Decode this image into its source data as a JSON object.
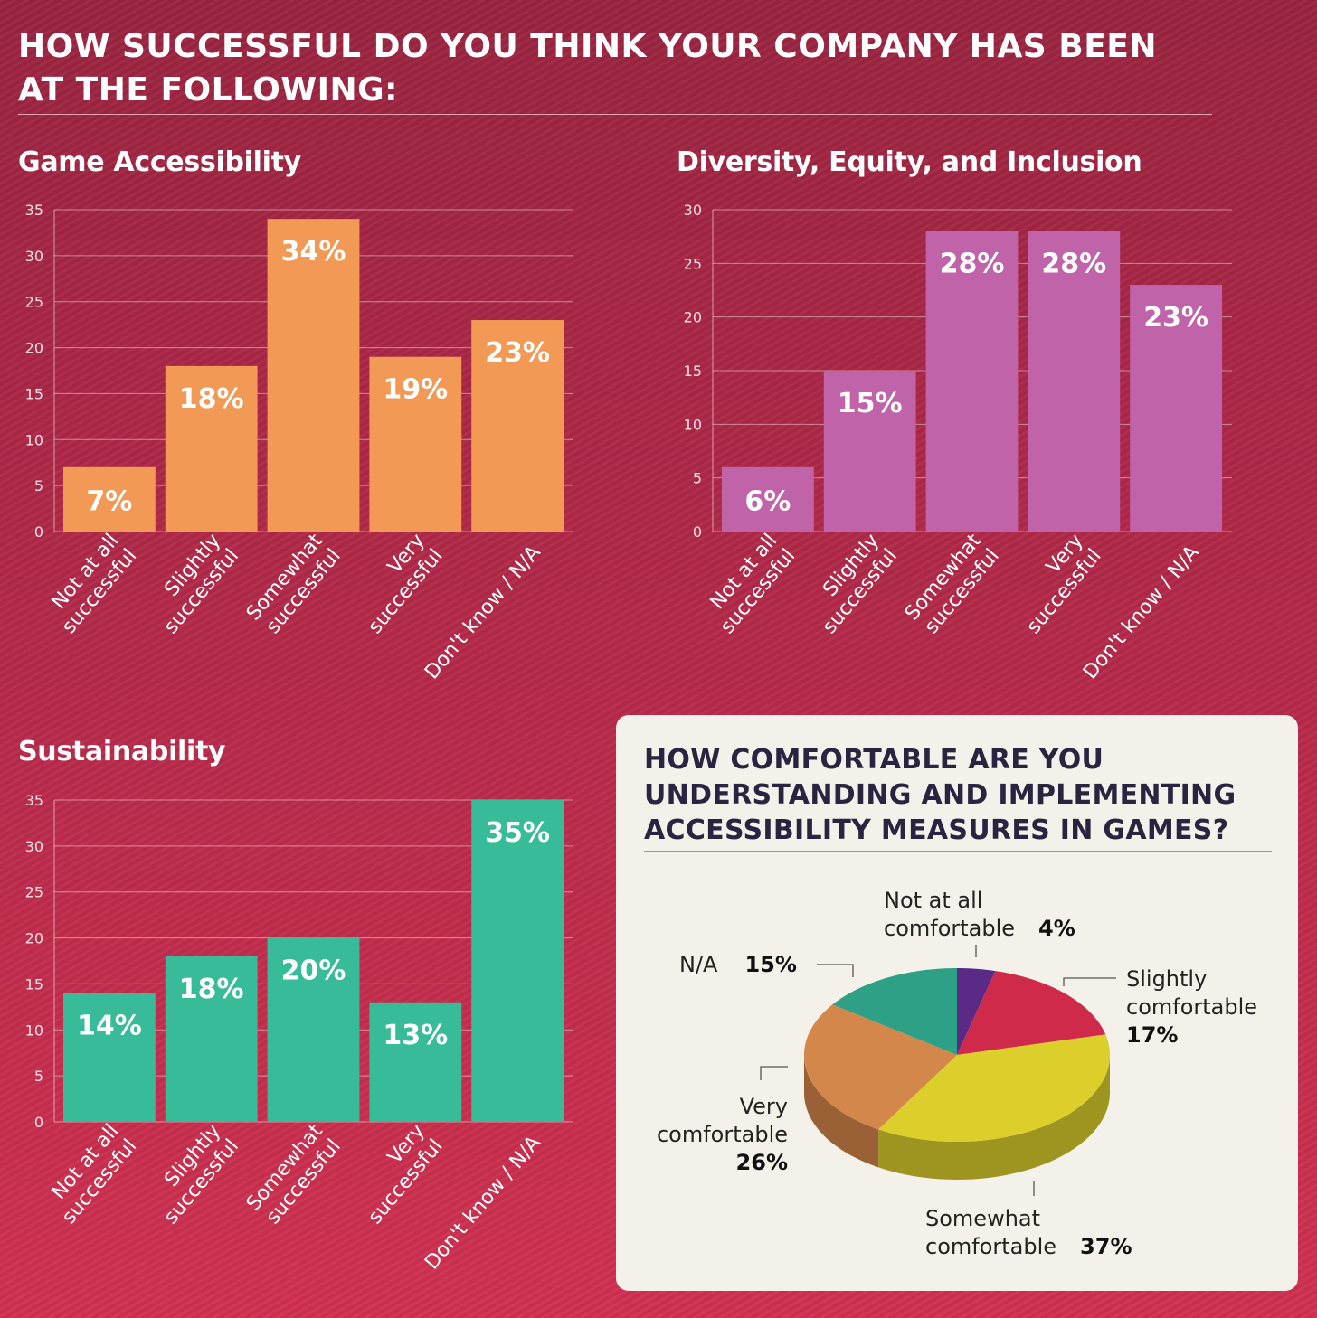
{
  "main_title": "HOW SUCCESSFUL DO YOU THINK YOUR COMPANY HAS BEEN AT THE FOLLOWING:",
  "chart_data": [
    {
      "type": "bar",
      "title": "Game Accessibility",
      "categories": [
        "Not at all successful",
        "Slightly successful",
        "Somewhat successful",
        "Very successful",
        "Don't know / N/A"
      ],
      "values": [
        7,
        18,
        34,
        19,
        23
      ],
      "data_labels": [
        "7%",
        "18%",
        "34%",
        "19%",
        "23%"
      ],
      "yticks": [
        "0",
        "5",
        "10",
        "15",
        "20",
        "25",
        "30",
        "35"
      ],
      "ylim": [
        0,
        35
      ],
      "color": "#f29a55",
      "grid": true
    },
    {
      "type": "bar",
      "title": "Diversity, Equity, and Inclusion",
      "categories": [
        "Not at all successful",
        "Slightly successful",
        "Somewhat successful",
        "Very successful",
        "Don't know / N/A"
      ],
      "values": [
        6,
        15,
        28,
        28,
        23
      ],
      "data_labels": [
        "6%",
        "15%",
        "28%",
        "28%",
        "23%"
      ],
      "yticks": [
        "0",
        "5",
        "10",
        "15",
        "20",
        "25",
        "30"
      ],
      "ylim": [
        0,
        30
      ],
      "color": "#c063a8",
      "grid": true
    },
    {
      "type": "bar",
      "title": "Sustainability",
      "categories": [
        "Not at all successful",
        "Slightly successful",
        "Somewhat successful",
        "Very successful",
        "Don't know / N/A"
      ],
      "values": [
        14,
        18,
        20,
        13,
        35
      ],
      "data_labels": [
        "14%",
        "18%",
        "20%",
        "13%",
        "35%"
      ],
      "yticks": [
        "0",
        "5",
        "10",
        "15",
        "20",
        "25",
        "30",
        "35"
      ],
      "ylim": [
        0,
        35
      ],
      "color": "#37bb98",
      "grid": true
    },
    {
      "type": "pie",
      "title": "HOW COMFORTABLE ARE YOU UNDERSTANDING AND IMPLEMENTING ACCESSIBILITY MEASURES IN GAMES?",
      "slices": [
        {
          "label_lines": [
            "Not at all",
            "comfortable"
          ],
          "value": 4,
          "pct_label": "4%",
          "color": "#5b2a86"
        },
        {
          "label_lines": [
            "Slightly",
            "comfortable"
          ],
          "value": 17,
          "pct_label": "17%",
          "color": "#cf2a4a"
        },
        {
          "label_lines": [
            "Somewhat",
            "comfortable"
          ],
          "value": 37,
          "pct_label": "37%",
          "color": "#dccf2c"
        },
        {
          "label_lines": [
            "Very",
            "comfortable"
          ],
          "value": 26,
          "pct_label": "26%",
          "color": "#d4874a"
        },
        {
          "label_lines": [
            "N/A"
          ],
          "value": 15,
          "pct_label": "15%",
          "color": "#2ea086"
        }
      ]
    }
  ]
}
